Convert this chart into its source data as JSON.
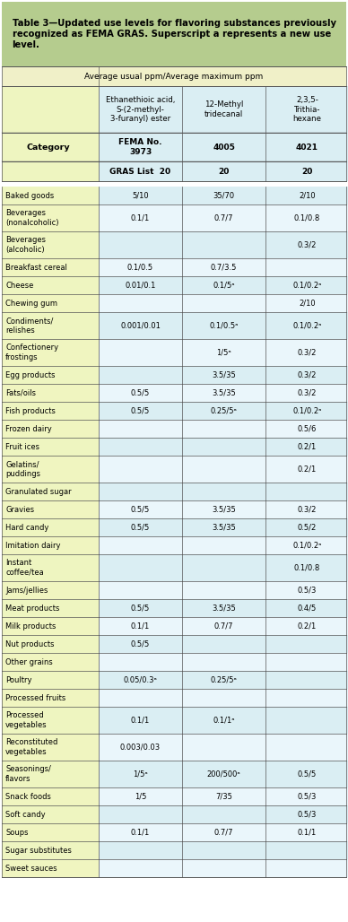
{
  "title": "Table 3—Updated use levels for flavoring substances previously recognized as FEMA GRAS. Superscript a represents a new use level.",
  "header_row": "Average usual ppm/Average maximum ppm",
  "col_headers": [
    "Ethanethioic acid,\nS-(2-methyl-\n3-furanyl) ester",
    "12-Methyl\ntridecanal",
    "2,3,5-\nTrithia-\nhexane"
  ],
  "fema_nos": [
    "FEMA No.\n3973",
    "4005",
    "4021"
  ],
  "gras_list": [
    "GRAS List  20",
    "20",
    "20"
  ],
  "rows": [
    [
      "Baked goods",
      "5/10",
      "35/70",
      "2/10"
    ],
    [
      "Beverages\n(nonalcoholic)",
      "0.1/1",
      "0.7/7",
      "0.1/0.8"
    ],
    [
      "Beverages\n(alcoholic)",
      "",
      "",
      "0.3/2"
    ],
    [
      "Breakfast cereal",
      "0.1/0.5",
      "0.7/3.5",
      ""
    ],
    [
      "Cheese",
      "0.01/0.1",
      "0.1/5ᵃ",
      "0.1/0.2ᵃ"
    ],
    [
      "Chewing gum",
      "",
      "",
      "2/10"
    ],
    [
      "Condiments/\nrelishes",
      "0.001/0.01",
      "0.1/0.5ᵃ",
      "0.1/0.2ᵃ"
    ],
    [
      "Confectionery\nfrostings",
      "",
      "1/5ᵃ",
      "0.3/2"
    ],
    [
      "Egg products",
      "",
      "3.5/35",
      "0.3/2"
    ],
    [
      "Fats/oils",
      "0.5/5",
      "3.5/35",
      "0.3/2"
    ],
    [
      "Fish products",
      "0.5/5",
      "0.25/5ᵃ",
      "0.1/0.2ᵃ"
    ],
    [
      "Frozen dairy",
      "",
      "",
      "0.5/6"
    ],
    [
      "Fruit ices",
      "",
      "",
      "0.2/1"
    ],
    [
      "Gelatins/\npuddings",
      "",
      "",
      "0.2/1"
    ],
    [
      "Granulated sugar",
      "",
      "",
      ""
    ],
    [
      "Gravies",
      "0.5/5",
      "3.5/35",
      "0.3/2"
    ],
    [
      "Hard candy",
      "0.5/5",
      "3.5/35",
      "0.5/2"
    ],
    [
      "Imitation dairy",
      "",
      "",
      "0.1/0.2ᵃ"
    ],
    [
      "Instant\ncoffee/tea",
      "",
      "",
      "0.1/0.8"
    ],
    [
      "Jams/jellies",
      "",
      "",
      "0.5/3"
    ],
    [
      "Meat products",
      "0.5/5",
      "3.5/35",
      "0.4/5"
    ],
    [
      "Milk products",
      "0.1/1",
      "0.7/7",
      "0.2/1"
    ],
    [
      "Nut products",
      "0.5/5",
      "",
      ""
    ],
    [
      "Other grains",
      "",
      "",
      ""
    ],
    [
      "Poultry",
      "0.05/0.3ᵃ",
      "0.25/5ᵃ",
      ""
    ],
    [
      "Processed fruits",
      "",
      "",
      ""
    ],
    [
      "Processed\nvegetables",
      "0.1/1",
      "0.1/1ᵃ",
      ""
    ],
    [
      "Reconstituted\nvegetables",
      "0.003/0.03",
      "",
      ""
    ],
    [
      "Seasonings/\nflavors",
      "1/5ᵃ",
      "200/500ᵃ",
      "0.5/5"
    ],
    [
      "Snack foods",
      "1/5",
      "7/35",
      "0.5/3"
    ],
    [
      "Soft candy",
      "",
      "",
      "0.5/3"
    ],
    [
      "Soups",
      "0.1/1",
      "0.7/7",
      "0.1/1"
    ],
    [
      "Sugar substitutes",
      "",
      "",
      ""
    ],
    [
      "Sweet sauces",
      "",
      "",
      ""
    ]
  ],
  "title_bg": "#8db06a",
  "header_bg": "#f5f5dc",
  "col_bg": "#d4ecf5",
  "cat_bg": "#f5f5c8",
  "alt_cat_bg": "#e8f0b0",
  "row_bg_even": "#d4ecf5",
  "row_bg_odd": "#eaf6fb",
  "border_color": "#888888",
  "title_color": "#000000",
  "text_color": "#333333"
}
